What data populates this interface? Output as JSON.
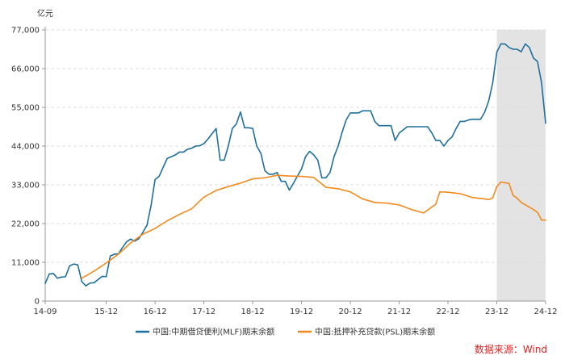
{
  "chart_data": {
    "type": "line",
    "y_unit": "亿元",
    "ylim": [
      0,
      77000
    ],
    "yticks": [
      0,
      11000,
      22000,
      33000,
      44000,
      55000,
      66000,
      77000
    ],
    "ytick_labels": [
      "0",
      "11,000",
      "22,000",
      "33,000",
      "44,000",
      "55,000",
      "66,000",
      "77,000"
    ],
    "xlim": [
      "2014-09",
      "2024-12"
    ],
    "xticks": [
      "2014-09",
      "2015-12",
      "2016-12",
      "2017-12",
      "2018-12",
      "2019-12",
      "2020-12",
      "2021-12",
      "2022-12",
      "2023-12",
      "2024-12"
    ],
    "xtick_labels": [
      "14-09",
      "15-12",
      "16-12",
      "17-12",
      "18-12",
      "19-12",
      "20-12",
      "21-12",
      "22-12",
      "23-12",
      "24-12"
    ],
    "grid": {
      "horizontal": true,
      "vertical": false,
      "style": "dashed"
    },
    "shaded_region": {
      "from": "2023-12",
      "to": "2024-12",
      "color": "#e3e3e3"
    },
    "legend_position": "bottom",
    "colors": {
      "mlf": "#1f6f9c",
      "psl": "#f28a1e",
      "source": "#e02020",
      "axis": "#999999",
      "grid": "#dddddd"
    },
    "series": [
      {
        "name": "中国:中期借贷便利(MLF)期末余额",
        "color": "#1f6f9c",
        "x": [
          "2014-09",
          "2014-10",
          "2014-11",
          "2014-12",
          "2015-01",
          "2015-02",
          "2015-03",
          "2015-04",
          "2015-05",
          "2015-06",
          "2015-07",
          "2015-08",
          "2015-09",
          "2015-10",
          "2015-11",
          "2015-12",
          "2016-01",
          "2016-02",
          "2016-03",
          "2016-04",
          "2016-05",
          "2016-06",
          "2016-07",
          "2016-08",
          "2016-09",
          "2016-10",
          "2016-11",
          "2016-12",
          "2017-01",
          "2017-02",
          "2017-03",
          "2017-04",
          "2017-05",
          "2017-06",
          "2017-07",
          "2017-08",
          "2017-09",
          "2017-10",
          "2017-11",
          "2017-12",
          "2018-01",
          "2018-02",
          "2018-03",
          "2018-04",
          "2018-05",
          "2018-06",
          "2018-07",
          "2018-08",
          "2018-09",
          "2018-10",
          "2018-11",
          "2018-12",
          "2019-01",
          "2019-02",
          "2019-03",
          "2019-04",
          "2019-05",
          "2019-06",
          "2019-07",
          "2019-08",
          "2019-09",
          "2019-10",
          "2019-11",
          "2019-12",
          "2020-01",
          "2020-02",
          "2020-03",
          "2020-04",
          "2020-05",
          "2020-06",
          "2020-07",
          "2020-08",
          "2020-09",
          "2020-10",
          "2020-11",
          "2020-12",
          "2021-01",
          "2021-02",
          "2021-03",
          "2021-04",
          "2021-05",
          "2021-06",
          "2021-07",
          "2021-08",
          "2021-09",
          "2021-10",
          "2021-11",
          "2021-12",
          "2022-01",
          "2022-02",
          "2022-03",
          "2022-04",
          "2022-05",
          "2022-06",
          "2022-07",
          "2022-08",
          "2022-09",
          "2022-10",
          "2022-11",
          "2022-12",
          "2023-01",
          "2023-02",
          "2023-03",
          "2023-04",
          "2023-05",
          "2023-06",
          "2023-07",
          "2023-08",
          "2023-09",
          "2023-10",
          "2023-11",
          "2023-12",
          "2024-01",
          "2024-02",
          "2024-03",
          "2024-04",
          "2024-05",
          "2024-06",
          "2024-07",
          "2024-08",
          "2024-09",
          "2024-10",
          "2024-11",
          "2024-12"
        ],
        "values": [
          5000,
          7700,
          7800,
          6500,
          6800,
          6900,
          10000,
          10500,
          10300,
          5500,
          4300,
          5100,
          5200,
          6100,
          7000,
          6900,
          12800,
          13300,
          13400,
          15200,
          16800,
          17600,
          17000,
          17700,
          19500,
          21500,
          27000,
          34500,
          35400,
          38000,
          40500,
          41000,
          41500,
          42300,
          42300,
          43100,
          43400,
          44000,
          44100,
          44700,
          46000,
          47500,
          49000,
          40000,
          40000,
          44000,
          49000,
          50300,
          53700,
          49200,
          49200,
          49000,
          44000,
          42000,
          37000,
          36000,
          36000,
          36500,
          34000,
          34000,
          31500,
          33400,
          35500,
          37500,
          41000,
          42500,
          41500,
          40000,
          35000,
          35000,
          36500,
          41000,
          44000,
          48000,
          51500,
          53400,
          53400,
          53400,
          54000,
          54000,
          54000,
          51000,
          49800,
          49800,
          49800,
          49800,
          45600,
          47700,
          48600,
          49500,
          49500,
          49500,
          49500,
          49500,
          49500,
          47800,
          45600,
          45600,
          44000,
          45600,
          46600,
          49000,
          51000,
          51000,
          51400,
          51600,
          51600,
          51600,
          53600,
          56800,
          62000,
          70700,
          73000,
          73000,
          72000,
          71500,
          71500,
          70800,
          73000,
          72000,
          69000,
          68000,
          62000,
          50500
        ]
      },
      {
        "name": "中国:抵押补充贷款(PSL)期末余额",
        "color": "#f28a1e",
        "x": [
          "2015-06",
          "2015-09",
          "2015-12",
          "2016-03",
          "2016-06",
          "2016-09",
          "2016-12",
          "2017-03",
          "2017-06",
          "2017-09",
          "2017-12",
          "2018-03",
          "2018-06",
          "2018-09",
          "2018-12",
          "2019-03",
          "2019-06",
          "2019-09",
          "2019-12",
          "2020-03",
          "2020-06",
          "2020-09",
          "2020-12",
          "2021-03",
          "2021-06",
          "2021-09",
          "2021-12",
          "2022-03",
          "2022-06",
          "2022-09",
          "2022-10",
          "2022-12",
          "2023-03",
          "2023-06",
          "2023-09",
          "2023-10",
          "2023-11",
          "2023-12",
          "2024-01",
          "2024-02",
          "2024-03",
          "2024-04",
          "2024-05",
          "2024-06",
          "2024-09",
          "2024-10",
          "2024-11",
          "2024-12"
        ],
        "values": [
          6500,
          8500,
          10800,
          13300,
          16500,
          19000,
          20600,
          22800,
          24600,
          26200,
          29500,
          31400,
          32500,
          33500,
          34700,
          35000,
          35700,
          35500,
          35400,
          35100,
          32300,
          31900,
          31000,
          29000,
          28000,
          27800,
          27300,
          26000,
          25000,
          27500,
          31000,
          30900,
          30500,
          29400,
          29000,
          28800,
          29300,
          32500,
          33800,
          33600,
          33400,
          30000,
          29200,
          28000,
          26000,
          25200,
          23000,
          23000
        ]
      }
    ],
    "legend": [
      "中国:中期借贷便利(MLF)期末余额",
      "中国:抵押补充贷款(PSL)期末余额"
    ],
    "source_note": "数据来源：Wind"
  }
}
